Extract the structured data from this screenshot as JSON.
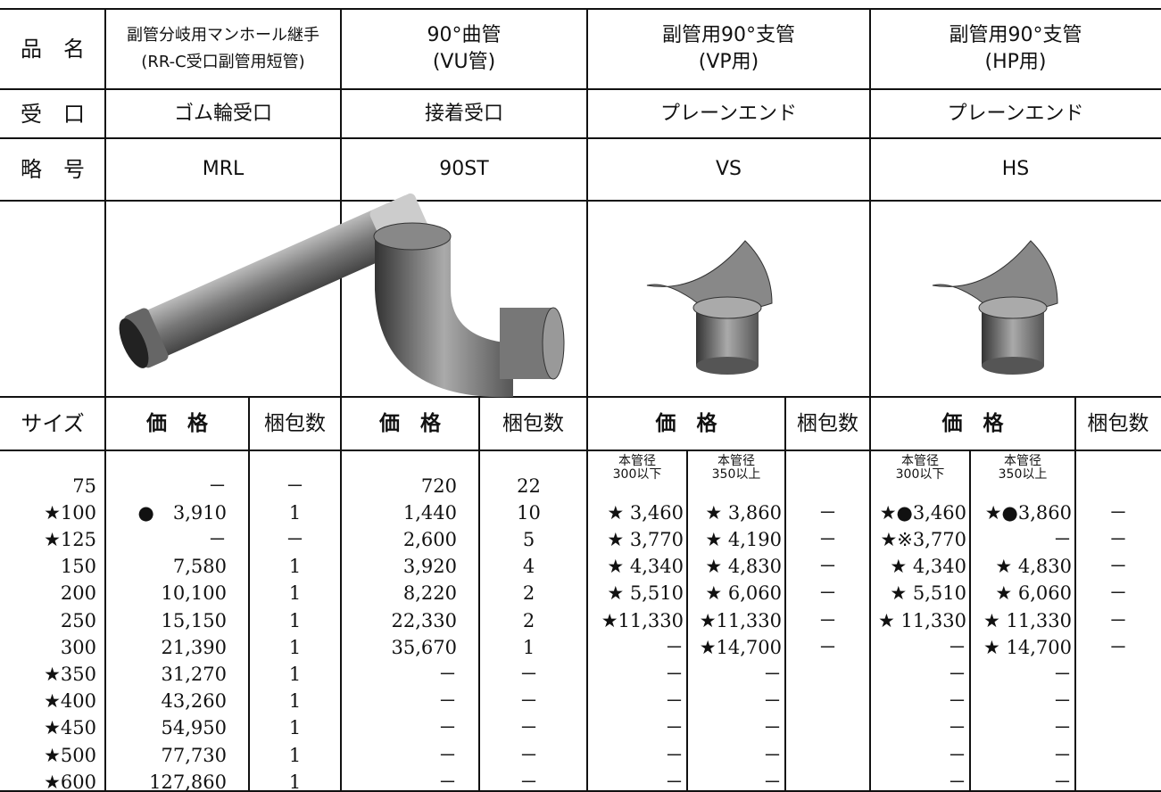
{
  "header": {
    "row_labels": [
      "品　名",
      "受　口",
      "略　号",
      "サイズ"
    ],
    "price_label": "価　格",
    "qty_label": "梱包数"
  },
  "sizes": [
    "75",
    "★100",
    "★125",
    "150",
    "200",
    "250",
    "300",
    "★350",
    "★400",
    "★450",
    "★500",
    "★600"
  ],
  "products": [
    {
      "name": [
        "副管分岐用マンホール継手",
        "(RR-C受口副管用短管)"
      ],
      "receiver": "ゴム輪受口",
      "code": "MRL",
      "price": [
        "－",
        "●　3,910",
        "－",
        "7,580",
        "10,100",
        "15,150",
        "21,390",
        "31,270",
        "43,260",
        "54,950",
        "77,730",
        "127,860"
      ],
      "qty": [
        "－",
        "1",
        "－",
        "1",
        "1",
        "1",
        "1",
        "1",
        "1",
        "1",
        "1",
        "1"
      ]
    },
    {
      "name": [
        "90°曲管",
        "(VU管)"
      ],
      "receiver": "接着受口",
      "code": "90ST",
      "price": [
        "720",
        "1,440",
        "2,600",
        "3,920",
        "8,220",
        "22,330",
        "35,670",
        "－",
        "－",
        "－",
        "－",
        "－"
      ],
      "qty": [
        "22",
        "10",
        "5",
        "4",
        "2",
        "2",
        "1",
        "－",
        "－",
        "－",
        "－",
        "－"
      ]
    },
    {
      "name": [
        "副管用90°支管",
        "(VP用)"
      ],
      "receiver": "プレーンエンド",
      "code": "VS",
      "price_sub": [
        {
          "label": [
            "本管径",
            "300以下"
          ],
          "values": [
            "★ 3,460",
            "★ 3,770",
            "★ 4,340",
            "★ 5,510",
            "★11,330",
            "－",
            "－",
            "－",
            "－",
            "－",
            "－"
          ]
        },
        {
          "label": [
            "本管径",
            "350以上"
          ],
          "values": [
            "★ 3,860",
            "★ 4,190",
            "★ 4,830",
            "★ 6,060",
            "★11,330",
            "★14,700",
            "－",
            "－",
            "－",
            "－",
            "－"
          ]
        }
      ],
      "qty": [
        "－",
        "－",
        "－",
        "－",
        "－",
        "－"
      ]
    },
    {
      "name": [
        "副管用90°支管",
        "(HP用)"
      ],
      "receiver": "プレーンエンド",
      "code": "HS",
      "price_sub": [
        {
          "label": [
            "本管径",
            "300以下"
          ],
          "values": [
            "★●3,460",
            "★※3,770",
            "★ 4,340",
            "★ 5,510",
            "★ 11,330",
            "－",
            "－",
            "－",
            "－",
            "－",
            "－"
          ]
        },
        {
          "label": [
            "本管径",
            "350以上"
          ],
          "values": [
            "★●3,860",
            "－",
            "★ 4,830",
            "★ 6,060",
            "★ 11,330",
            "★ 14,700",
            "－",
            "－",
            "－",
            "－",
            "－"
          ]
        }
      ],
      "qty": [
        "－",
        "－",
        "－",
        "－",
        "－",
        "－"
      ]
    }
  ]
}
